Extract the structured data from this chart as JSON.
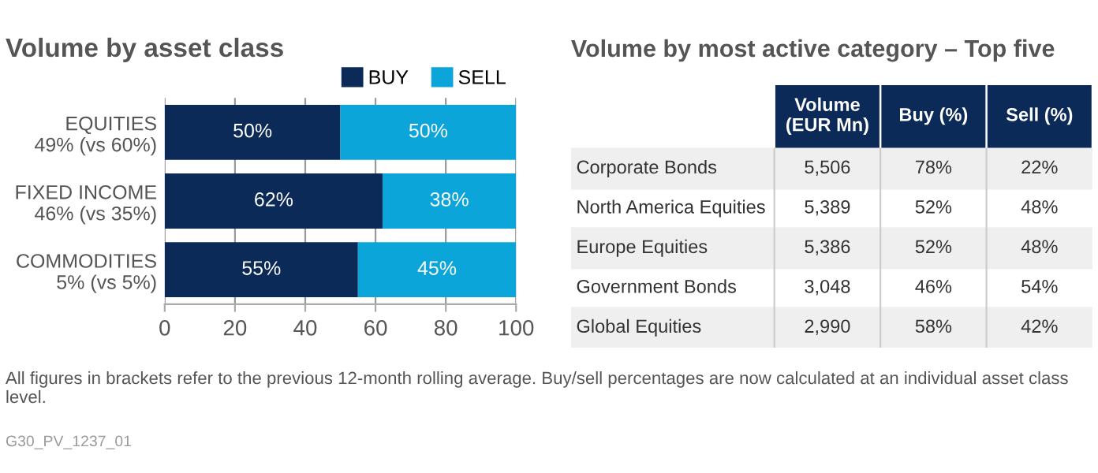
{
  "chart_data": [
    {
      "type": "bar",
      "orientation": "horizontal",
      "stacked": true,
      "title": "Volume by asset class",
      "categories": [
        "EQUITIES\n49% (vs 60%)",
        "FIXED INCOME\n46% (vs 35%)",
        "COMMODITIES\n5% (vs 5%)"
      ],
      "series": [
        {
          "name": "BUY",
          "color": "#0c2a57",
          "values": [
            50,
            62,
            55
          ],
          "value_labels": [
            "50%",
            "62%",
            "55%"
          ]
        },
        {
          "name": "SELL",
          "color": "#0ba5d9",
          "values": [
            50,
            38,
            45
          ],
          "value_labels": [
            "50%",
            "38%",
            "45%"
          ]
        }
      ],
      "xlim": [
        0,
        100
      ],
      "xticks": [
        0,
        20,
        40,
        60,
        80,
        100
      ],
      "grid": "x",
      "legend": "top right",
      "annotations": [
        "All figures in brackets refer to the previous 12-month rolling average. Buy/sell percentages are now calculated at an individual asset class level.",
        "G30_PV_1237_01"
      ]
    },
    {
      "type": "other",
      "title": "Volume by most active category – Top five",
      "categories": [
        "Volume\n(EUR Mn)",
        "Buy (%)",
        "Sell (%)"
      ],
      "y_categories": [
        "Corporate Bonds",
        "North America Equities",
        "Europe Equities",
        "Government Bonds",
        "Global Equities"
      ],
      "cell_labels": [
        [
          "5,506",
          "78%",
          "22%"
        ],
        [
          "5,389",
          "52%",
          "48%"
        ],
        [
          "5,386",
          "52%",
          "48%"
        ],
        [
          "3,048",
          "46%",
          "54%"
        ],
        [
          "2,990",
          "58%",
          "42%"
        ]
      ]
    }
  ]
}
